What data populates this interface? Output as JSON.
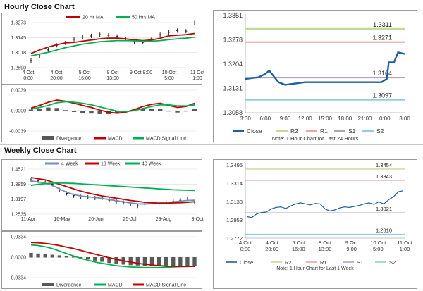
{
  "hourly": {
    "title": "Hourly Close Chart",
    "price": {
      "legend": [
        "20 Hr MA",
        "50 Hrs MA"
      ],
      "colors": {
        "price": "#222222",
        "ma20": "#c00000",
        "ma50": "#00b050"
      },
      "y_ticks": [
        "1.3273",
        "1.3145",
        "1.3018",
        "1.2890"
      ],
      "y_tick_values": [
        1.3273,
        1.3145,
        1.3018,
        1.289
      ],
      "ylim": [
        1.289,
        1.3273
      ],
      "x_ticks": [
        [
          "4 Oct",
          "0:00"
        ],
        [
          "4 Oct",
          "20:00"
        ],
        [
          "5 Oct",
          "16:00"
        ],
        [
          "8 Oct",
          "13:00"
        ],
        [
          "9 Oct 9:00",
          ""
        ],
        [
          "10 Oct",
          "5:00"
        ],
        [
          "11 Oct",
          "1:00"
        ]
      ],
      "ma20": [
        1.301,
        1.304,
        1.3065,
        1.3085,
        1.31,
        1.3105,
        1.3115,
        1.3125,
        1.3135,
        1.314,
        1.314,
        1.3135,
        1.3125,
        1.312,
        1.3125,
        1.314,
        1.316,
        1.3165,
        1.317,
        1.318
      ],
      "ma50": [
        1.299,
        1.3005,
        1.302,
        1.304,
        1.306,
        1.3075,
        1.309,
        1.31,
        1.311,
        1.3115,
        1.312,
        1.312,
        1.3118,
        1.3115,
        1.3115,
        1.312,
        1.3128,
        1.3135,
        1.314,
        1.315
      ],
      "close": [
        1.295,
        1.299,
        1.304,
        1.308,
        1.31,
        1.313,
        1.315,
        1.316,
        1.317,
        1.3165,
        1.3155,
        1.3135,
        1.311,
        1.3105,
        1.3135,
        1.317,
        1.319,
        1.3205,
        1.32,
        1.327
      ]
    },
    "macd": {
      "legend": [
        "Divergence",
        "MACD",
        "MACD Signal Line"
      ],
      "colors": {
        "divergence": "#595959",
        "macd": "#c00000",
        "signal": "#00b050"
      },
      "y_ticks": [
        "0.0039",
        "0.0000",
        "-0.0039"
      ],
      "y_tick_values": [
        0.0039,
        0.0,
        -0.0039
      ],
      "ylim": [
        -0.0039,
        0.0039
      ],
      "macd": [
        0.0005,
        0.001,
        0.0016,
        0.002,
        0.0018,
        0.0014,
        0.001,
        0.0006,
        0.0001,
        -0.0003,
        -0.0005,
        -0.0003,
        0.0002,
        0.0008,
        0.0012,
        0.0014,
        0.001,
        0.0006,
        0.0008,
        0.0014
      ],
      "signal": [
        0.0003,
        0.0006,
        0.001,
        0.0015,
        0.0017,
        0.0016,
        0.0014,
        0.0011,
        0.0007,
        0.0003,
        -0.0001,
        -0.0002,
        0.0,
        0.0004,
        0.0008,
        0.0011,
        0.0011,
        0.0009,
        0.0009,
        0.0011
      ],
      "divergence": [
        0.0002,
        0.0004,
        0.0006,
        0.0005,
        0.0001,
        -0.0002,
        -0.0004,
        -0.0005,
        -0.0006,
        -0.0006,
        -0.0004,
        -0.0001,
        0.0002,
        0.0004,
        0.0004,
        0.0003,
        -0.0001,
        -0.0003,
        -0.0001,
        0.0003
      ]
    },
    "levels": {
      "y_ticks": [
        "1.3351",
        "1.3278",
        "1.3204",
        "1.3131",
        "1.3058"
      ],
      "y_tick_values": [
        1.3351,
        1.3278,
        1.3204,
        1.3131,
        1.3058
      ],
      "ylim": [
        1.3058,
        1.3351
      ],
      "x_ticks": [
        "3:00",
        "6:00",
        "9:00",
        "12:00",
        "15:00",
        "18:00",
        "21:00",
        "0:00",
        "3:00"
      ],
      "x_tick_values": [
        0,
        3,
        6,
        9,
        12,
        15,
        18,
        21,
        24
      ],
      "close_x": [
        0,
        2,
        3,
        3.6,
        5,
        6,
        9,
        12,
        15,
        18,
        19,
        20.5,
        21.3,
        21.6,
        22.4,
        23,
        24
      ],
      "close_y": [
        1.316,
        1.3165,
        1.3175,
        1.3185,
        1.315,
        1.3142,
        1.315,
        1.315,
        1.315,
        1.315,
        1.315,
        1.315,
        1.316,
        1.321,
        1.321,
        1.324,
        1.3235
      ],
      "levels": [
        {
          "name": "R2",
          "value": 1.3311,
          "label": "1.3311",
          "color": "#c6d89a"
        },
        {
          "name": "R1",
          "value": 1.3271,
          "label": "1.3271",
          "color": "#e6a7a5"
        },
        {
          "name": "S1",
          "value": 1.3164,
          "label": "1.3164",
          "color": "#b3a2c7"
        },
        {
          "name": "S2",
          "value": 1.3097,
          "label": "1.3097",
          "color": "#92cddc"
        }
      ],
      "close_color": "#1f5f9e",
      "legend": [
        "Close",
        "R2",
        "R1",
        "S1",
        "S2"
      ],
      "note": "Note: 1 Hour Chart for Last 24 Hours"
    }
  },
  "weekly": {
    "title": "Weekly Close Chart",
    "price": {
      "legend": [
        "4 Week",
        "13 Week",
        "40 Week"
      ],
      "colors": {
        "price": "#222222",
        "w4": "#6f8fc0",
        "w13": "#c00000",
        "w40": "#00b050"
      },
      "y_ticks": [
        "1.4521",
        "1.3859",
        "1.3197",
        "1.2535"
      ],
      "y_tick_values": [
        1.4521,
        1.3859,
        1.3197,
        1.2535
      ],
      "ylim": [
        1.2535,
        1.4521
      ],
      "x_ticks": [
        "11-Apr",
        "16-May",
        "20-Jun",
        "25-Jul",
        "29-Aug",
        "3-Oct"
      ],
      "close": [
        1.405,
        1.4,
        1.395,
        1.385,
        1.36,
        1.345,
        1.335,
        1.33,
        1.328,
        1.325,
        1.325,
        1.315,
        1.31,
        1.305,
        1.3,
        1.29,
        1.3,
        1.305,
        1.3,
        1.305,
        1.31,
        1.315,
        1.32,
        1.307
      ],
      "w4": [
        1.4,
        1.395,
        1.39,
        1.38,
        1.365,
        1.35,
        1.34,
        1.334,
        1.33,
        1.327,
        1.323,
        1.318,
        1.313,
        1.308,
        1.303,
        1.299,
        1.298,
        1.3,
        1.303,
        1.305,
        1.308,
        1.311,
        1.314,
        1.315
      ],
      "w13": [
        1.415,
        1.41,
        1.405,
        1.395,
        1.385,
        1.375,
        1.365,
        1.355,
        1.347,
        1.34,
        1.334,
        1.329,
        1.324,
        1.319,
        1.314,
        1.31,
        1.306,
        1.304,
        1.302,
        1.302,
        1.303,
        1.304,
        1.306,
        1.308
      ],
      "w40": [
        1.38,
        1.385,
        1.388,
        1.39,
        1.391,
        1.39,
        1.389,
        1.387,
        1.385,
        1.383,
        1.381,
        1.379,
        1.377,
        1.375,
        1.373,
        1.371,
        1.369,
        1.367,
        1.365,
        1.363,
        1.361,
        1.36,
        1.359,
        1.358
      ]
    },
    "macd": {
      "legend": [
        "Divergence",
        "MACD",
        "MACD Signal Line"
      ],
      "colors": {
        "divergence": "#595959",
        "macd": "#00b050",
        "signal": "#c00000"
      },
      "y_ticks": [
        "0.0334",
        "0.0000",
        "-0.0334"
      ],
      "y_tick_values": [
        0.0334,
        0.0,
        -0.0334
      ],
      "ylim": [
        -0.0334,
        0.0334
      ],
      "macd": [
        0.02,
        0.019,
        0.017,
        0.014,
        0.01,
        0.006,
        0.002,
        -0.002,
        -0.005,
        -0.008,
        -0.01,
        -0.012,
        -0.014,
        -0.015,
        -0.016,
        -0.0165,
        -0.017,
        -0.017,
        -0.0168,
        -0.0165,
        -0.016,
        -0.0155,
        -0.015,
        -0.015
      ],
      "signal": [
        0.024,
        0.0235,
        0.0225,
        0.021,
        0.019,
        0.0165,
        0.014,
        0.011,
        0.008,
        0.005,
        0.002,
        -0.001,
        -0.0035,
        -0.006,
        -0.008,
        -0.01,
        -0.0115,
        -0.0128,
        -0.0138,
        -0.0145,
        -0.015,
        -0.0152,
        -0.0152,
        -0.015
      ],
      "divergence": [
        0.007,
        0.006,
        0.005,
        0.004,
        0.003,
        0.002,
        0.001,
        -0.001,
        -0.003,
        -0.005,
        -0.007,
        -0.009,
        -0.0105,
        -0.0115,
        -0.0125,
        -0.013,
        -0.0135,
        -0.014,
        -0.014,
        -0.014,
        -0.014,
        -0.014,
        -0.014,
        -0.014
      ]
    },
    "levels": {
      "y_ticks": [
        "1.3495",
        "1.3314",
        "1.3133",
        "1.2953",
        "1.2772"
      ],
      "y_tick_values": [
        1.3495,
        1.3314,
        1.3133,
        1.2953,
        1.2772
      ],
      "ylim": [
        1.2772,
        1.3495
      ],
      "x_ticks": [
        [
          "4 Oct",
          "0:00"
        ],
        [
          "4 Oct",
          "20:00"
        ],
        [
          "5 Oct",
          "16:00"
        ],
        [
          "8 Oct",
          "13:00"
        ],
        [
          "9 Oct",
          "9:00"
        ],
        [
          "10 Oct",
          "5:00"
        ],
        [
          "11 Oct",
          "1:00"
        ]
      ],
      "close": [
        1.2985,
        1.2975,
        1.301,
        1.3025,
        1.303,
        1.306,
        1.3075,
        1.308,
        1.3065,
        1.309,
        1.311,
        1.312,
        1.311,
        1.31,
        1.3115,
        1.311,
        1.306,
        1.304,
        1.305,
        1.307,
        1.308,
        1.3075,
        1.3085,
        1.3095,
        1.311,
        1.312,
        1.3105,
        1.313,
        1.311,
        1.315,
        1.318,
        1.323,
        1.324
      ],
      "levels": [
        {
          "name": "R2",
          "value": 1.3454,
          "label": "1.3454",
          "color": "#c6d89a"
        },
        {
          "name": "R1",
          "value": 1.3343,
          "label": "1.3343",
          "color": "#e6a7a5"
        },
        {
          "name": "S1",
          "value": 1.3021,
          "label": "1.3021",
          "color": "#b3a2c7"
        },
        {
          "name": "S2",
          "value": 1.281,
          "label": "1.2810",
          "color": "#92cddc"
        }
      ],
      "close_color": "#1f5f9e",
      "legend": [
        "Close",
        "R2",
        "R1",
        "S1",
        "S2"
      ],
      "note": "Note: 1 Hour Chart for Last 1 Week"
    }
  },
  "chart_data": [
    {
      "type": "line",
      "title": "Hourly Close Chart",
      "series": [
        {
          "name": "20 Hr MA",
          "values": [
            1.301,
            1.304,
            1.3065,
            1.3085,
            1.31,
            1.3105,
            1.3115,
            1.3125,
            1.3135,
            1.314,
            1.314,
            1.3135,
            1.3125,
            1.312,
            1.3125,
            1.314,
            1.316,
            1.3165,
            1.317,
            1.318
          ]
        },
        {
          "name": "50 Hrs MA",
          "values": [
            1.299,
            1.3005,
            1.302,
            1.304,
            1.306,
            1.3075,
            1.309,
            1.31,
            1.311,
            1.3115,
            1.312,
            1.312,
            1.3118,
            1.3115,
            1.3115,
            1.312,
            1.3128,
            1.3135,
            1.314,
            1.315
          ]
        }
      ],
      "ylim": [
        1.289,
        1.3273
      ]
    },
    {
      "type": "line",
      "title": "",
      "series": [
        {
          "name": "Close",
          "values": [
            1.316,
            1.3165,
            1.3175,
            1.3185,
            1.315,
            1.3142,
            1.315,
            1.315,
            1.315,
            1.315,
            1.315,
            1.315,
            1.316,
            1.321,
            1.321,
            1.324,
            1.3235
          ]
        }
      ],
      "ylim": [
        1.3058,
        1.3351
      ]
    },
    {
      "type": "line",
      "title": "Weekly Close Chart",
      "series": [
        {
          "name": "4 Week",
          "values": [
            1.4,
            1.395,
            1.39,
            1.38,
            1.365,
            1.35,
            1.34,
            1.334,
            1.33,
            1.327,
            1.323,
            1.318,
            1.313,
            1.308,
            1.303,
            1.299,
            1.298,
            1.3,
            1.303,
            1.305,
            1.308,
            1.311,
            1.314,
            1.315
          ]
        },
        {
          "name": "13 Week",
          "values": [
            1.415,
            1.41,
            1.405,
            1.395,
            1.385,
            1.375,
            1.365,
            1.355,
            1.347,
            1.34,
            1.334,
            1.329,
            1.324,
            1.319,
            1.314,
            1.31,
            1.306,
            1.304,
            1.302,
            1.302,
            1.303,
            1.304,
            1.306,
            1.308
          ]
        },
        {
          "name": "40 Week",
          "values": [
            1.38,
            1.385,
            1.388,
            1.39,
            1.391,
            1.39,
            1.389,
            1.387,
            1.385,
            1.383,
            1.381,
            1.379,
            1.377,
            1.375,
            1.373,
            1.371,
            1.369,
            1.367,
            1.365,
            1.363,
            1.361,
            1.36,
            1.359,
            1.358
          ]
        }
      ],
      "ylim": [
        1.2535,
        1.4521
      ]
    },
    {
      "type": "line",
      "title": "",
      "series": [
        {
          "name": "Close",
          "values": [
            1.2985,
            1.2975,
            1.301,
            1.3025,
            1.303,
            1.306,
            1.3075,
            1.308,
            1.3065,
            1.309,
            1.311,
            1.312,
            1.311,
            1.31,
            1.3115,
            1.311,
            1.306,
            1.304,
            1.305,
            1.307,
            1.308,
            1.3075,
            1.3085,
            1.3095,
            1.311,
            1.312,
            1.3105,
            1.313,
            1.311,
            1.315,
            1.318,
            1.323,
            1.324
          ]
        }
      ],
      "ylim": [
        1.2772,
        1.3495
      ]
    }
  ]
}
